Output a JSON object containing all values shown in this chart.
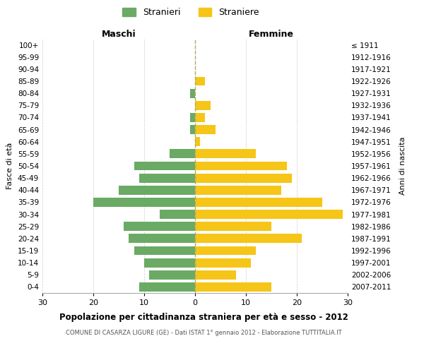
{
  "age_groups": [
    "0-4",
    "5-9",
    "10-14",
    "15-19",
    "20-24",
    "25-29",
    "30-34",
    "35-39",
    "40-44",
    "45-49",
    "50-54",
    "55-59",
    "60-64",
    "65-69",
    "70-74",
    "75-79",
    "80-84",
    "85-89",
    "90-94",
    "95-99",
    "100+"
  ],
  "birth_years": [
    "2007-2011",
    "2002-2006",
    "1997-2001",
    "1992-1996",
    "1987-1991",
    "1982-1986",
    "1977-1981",
    "1972-1976",
    "1967-1971",
    "1962-1966",
    "1957-1961",
    "1952-1956",
    "1947-1951",
    "1942-1946",
    "1937-1941",
    "1932-1936",
    "1927-1931",
    "1922-1926",
    "1917-1921",
    "1912-1916",
    "≤ 1911"
  ],
  "males": [
    11,
    9,
    10,
    12,
    13,
    14,
    7,
    20,
    15,
    11,
    12,
    5,
    0,
    1,
    1,
    0,
    1,
    0,
    0,
    0,
    0
  ],
  "females": [
    15,
    8,
    11,
    12,
    21,
    15,
    29,
    25,
    17,
    19,
    18,
    12,
    1,
    4,
    2,
    3,
    0,
    2,
    0,
    0,
    0
  ],
  "male_color": "#6aaa64",
  "female_color": "#f5c518",
  "background_color": "#ffffff",
  "grid_color": "#cccccc",
  "title": "Popolazione per cittadinanza straniera per età e sesso - 2012",
  "subtitle": "COMUNE DI CASARZA LIGURE (GE) - Dati ISTAT 1° gennaio 2012 - Elaborazione TUTTITALIA.IT",
  "xlabel_left": "Maschi",
  "xlabel_right": "Femmine",
  "ylabel_left": "Fasce di età",
  "ylabel_right": "Anni di nascita",
  "legend_males": "Stranieri",
  "legend_females": "Straniere",
  "xlim": 30,
  "bar_height": 0.75
}
